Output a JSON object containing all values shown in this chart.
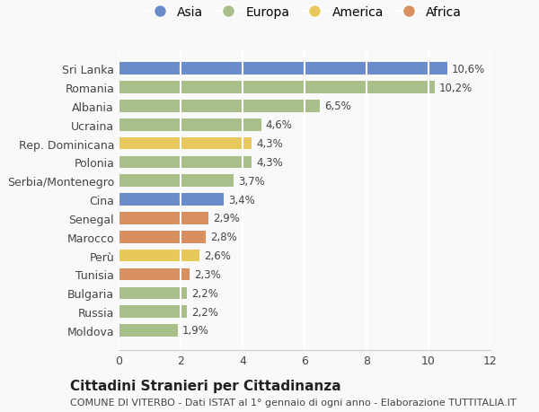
{
  "countries": [
    "Sri Lanka",
    "Romania",
    "Albania",
    "Ucraina",
    "Rep. Dominicana",
    "Polonia",
    "Serbia/Montenegro",
    "Cina",
    "Senegal",
    "Marocco",
    "Perù",
    "Tunisia",
    "Bulgaria",
    "Russia",
    "Moldova"
  ],
  "values": [
    10.6,
    10.2,
    6.5,
    4.6,
    4.3,
    4.3,
    3.7,
    3.4,
    2.9,
    2.8,
    2.6,
    2.3,
    2.2,
    2.2,
    1.9
  ],
  "labels": [
    "10,6%",
    "10,2%",
    "6,5%",
    "4,6%",
    "4,3%",
    "4,3%",
    "3,7%",
    "3,4%",
    "2,9%",
    "2,8%",
    "2,6%",
    "2,3%",
    "2,2%",
    "2,2%",
    "1,9%"
  ],
  "continents": [
    "Asia",
    "Europa",
    "Europa",
    "Europa",
    "America",
    "Europa",
    "Europa",
    "Asia",
    "Africa",
    "Africa",
    "America",
    "Africa",
    "Europa",
    "Europa",
    "Europa"
  ],
  "colors": {
    "Asia": "#6b8cca",
    "Europa": "#a8bf8a",
    "America": "#e8c85a",
    "Africa": "#d89060"
  },
  "legend_order": [
    "Asia",
    "Europa",
    "America",
    "Africa"
  ],
  "title": "Cittadini Stranieri per Cittadinanza",
  "subtitle": "COMUNE DI VITERBO - Dati ISTAT al 1° gennaio di ogni anno - Elaborazione TUTTITALIA.IT",
  "xlim": [
    0,
    12
  ],
  "xticks": [
    0,
    2,
    4,
    6,
    8,
    10,
    12
  ],
  "background_color": "#f9f9f9",
  "bar_height": 0.65,
  "title_fontsize": 11,
  "subtitle_fontsize": 8,
  "label_fontsize": 8.5,
  "tick_fontsize": 9,
  "legend_fontsize": 10,
  "legend_marker_size": 10
}
